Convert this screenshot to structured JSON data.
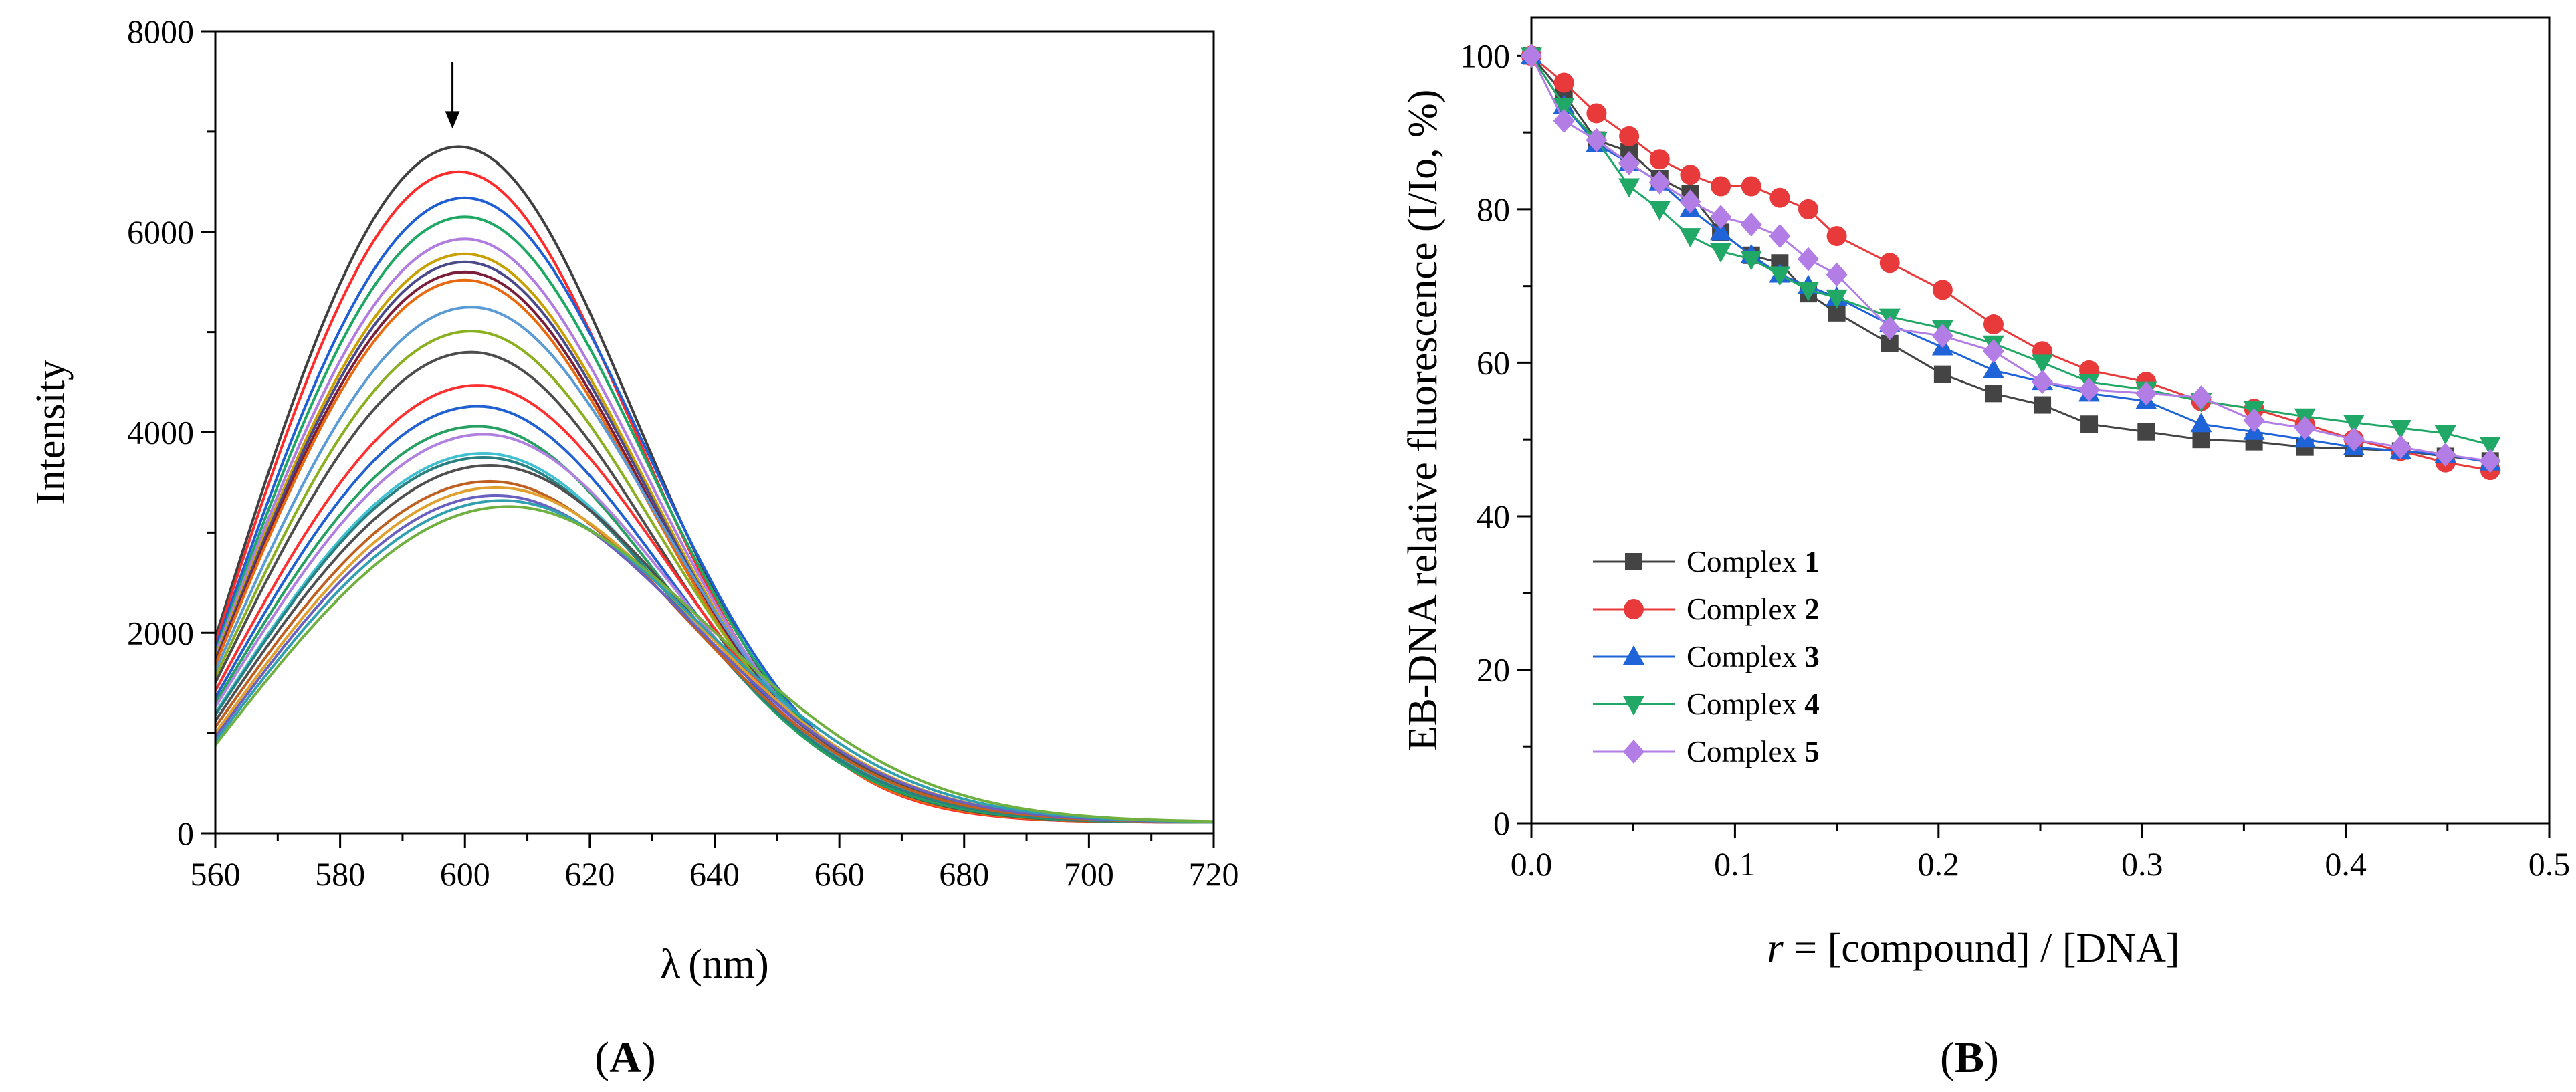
{
  "chart_data": [
    {
      "panel_label": "A",
      "type": "line",
      "xlabel_symbol": "λ",
      "xlabel_unit": "(nm)",
      "ylabel": "Intensity",
      "xlim": [
        560,
        720
      ],
      "ylim": [
        0,
        8000
      ],
      "x_ticks": [
        560,
        580,
        600,
        620,
        640,
        660,
        680,
        700,
        720
      ],
      "y_ticks": [
        0,
        2000,
        4000,
        6000,
        8000
      ],
      "grid": false,
      "annotation": "downward arrow near peak at ~598 nm indicating decreasing intensity",
      "arrow_x": 598,
      "arrow_y_range": [
        7700,
        7030
      ],
      "series_description": "EB-DNA emission spectra titrated with compound; peak max decreases and red-shifts",
      "series": [
        {
          "color": "#404040",
          "peak": 6850,
          "lambda_max": 599,
          "start": 1950
        },
        {
          "color": "#ff2b2b",
          "peak": 6600,
          "lambda_max": 599,
          "start": 1900
        },
        {
          "color": "#1f5fd6",
          "peak": 6340,
          "lambda_max": 600,
          "start": 1850
        },
        {
          "color": "#1ea864",
          "peak": 6150,
          "lambda_max": 600,
          "start": 1800
        },
        {
          "color": "#b07ce0",
          "peak": 5930,
          "lambda_max": 600,
          "start": 1780
        },
        {
          "color": "#c8a000",
          "peak": 5780,
          "lambda_max": 600,
          "start": 1750
        },
        {
          "color": "#4a4a8a",
          "peak": 5700,
          "lambda_max": 600,
          "start": 1720
        },
        {
          "color": "#7a1f3a",
          "peak": 5600,
          "lambda_max": 600,
          "start": 1700
        },
        {
          "color": "#e86a10",
          "peak": 5520,
          "lambda_max": 600,
          "start": 1680
        },
        {
          "color": "#5a9bd5",
          "peak": 5250,
          "lambda_max": 601,
          "start": 1620
        },
        {
          "color": "#8ab020",
          "peak": 5010,
          "lambda_max": 601,
          "start": 1560
        },
        {
          "color": "#4d4d4d",
          "peak": 4800,
          "lambda_max": 601,
          "start": 1500
        },
        {
          "color": "#ff3030",
          "peak": 4470,
          "lambda_max": 602,
          "start": 1420
        },
        {
          "color": "#2060d0",
          "peak": 4260,
          "lambda_max": 602,
          "start": 1350
        },
        {
          "color": "#25a060",
          "peak": 4060,
          "lambda_max": 602,
          "start": 1300
        },
        {
          "color": "#b080e0",
          "peak": 3980,
          "lambda_max": 603,
          "start": 1260
        },
        {
          "color": "#40c0d0",
          "peak": 3790,
          "lambda_max": 603,
          "start": 1200
        },
        {
          "color": "#2a8080",
          "peak": 3750,
          "lambda_max": 603,
          "start": 1180
        },
        {
          "color": "#505050",
          "peak": 3670,
          "lambda_max": 604,
          "start": 1120
        },
        {
          "color": "#c06020",
          "peak": 3510,
          "lambda_max": 604,
          "start": 1060
        },
        {
          "color": "#e0a030",
          "peak": 3450,
          "lambda_max": 605,
          "start": 1000
        },
        {
          "color": "#6a60c0",
          "peak": 3370,
          "lambda_max": 605,
          "start": 960
        },
        {
          "color": "#30a0b0",
          "peak": 3320,
          "lambda_max": 606,
          "start": 920
        },
        {
          "color": "#70b040",
          "peak": 3260,
          "lambda_max": 607,
          "start": 880
        }
      ]
    },
    {
      "panel_label": "B",
      "type": "line",
      "xlabel_var": "r",
      "xlabel_rest": " = [compound] / [DNA]",
      "ylabel": "EB-DNA relative fluorescence (I/Io, %)",
      "xlim": [
        0,
        0.5
      ],
      "ylim": [
        0,
        105
      ],
      "x_ticks": [
        0.0,
        0.1,
        0.2,
        0.3,
        0.4,
        0.5
      ],
      "x_tick_labels": [
        "0.0",
        "0.1",
        "0.2",
        "0.3",
        "0.4",
        "0.5"
      ],
      "y_ticks": [
        0,
        20,
        40,
        60,
        80,
        100
      ],
      "grid": false,
      "legend_position": "bottom-left",
      "series": [
        {
          "name_prefix": "Complex ",
          "name_bold": "1",
          "color": "#444444",
          "marker": "square",
          "x": [
            0,
            0.016,
            0.032,
            0.048,
            0.063,
            0.078,
            0.093,
            0.108,
            0.122,
            0.136,
            0.15,
            0.176,
            0.202,
            0.227,
            0.251,
            0.274,
            0.302,
            0.329,
            0.355,
            0.38,
            0.404,
            0.427,
            0.449,
            0.471
          ],
          "y": [
            100,
            95,
            89,
            87.5,
            84,
            82,
            77,
            74,
            73,
            69,
            66.5,
            62.5,
            58.5,
            56,
            54.5,
            52,
            51,
            50,
            49.7,
            49,
            48.8,
            48.5,
            47.8,
            47.2
          ]
        },
        {
          "name_prefix": "Complex ",
          "name_bold": "2",
          "color": "#e83a3a",
          "marker": "circle",
          "x": [
            0,
            0.016,
            0.032,
            0.048,
            0.063,
            0.078,
            0.093,
            0.108,
            0.122,
            0.136,
            0.15,
            0.176,
            0.202,
            0.227,
            0.251,
            0.274,
            0.302,
            0.329,
            0.355,
            0.38,
            0.404,
            0.427,
            0.449,
            0.471
          ],
          "y": [
            100,
            96.5,
            92.5,
            89.5,
            86.5,
            84.5,
            83,
            83,
            81.5,
            80,
            76.5,
            73,
            69.5,
            65,
            61.5,
            59,
            57.5,
            55,
            54,
            52,
            50,
            48.5,
            47,
            46
          ]
        },
        {
          "name_prefix": "Complex ",
          "name_bold": "3",
          "color": "#1e64d8",
          "marker": "triangle-up",
          "x": [
            0,
            0.016,
            0.032,
            0.048,
            0.063,
            0.078,
            0.093,
            0.108,
            0.122,
            0.136,
            0.15,
            0.176,
            0.202,
            0.227,
            0.251,
            0.274,
            0.302,
            0.329,
            0.355,
            0.38,
            0.404,
            0.427,
            0.449,
            0.471
          ],
          "y": [
            100,
            93.5,
            88.5,
            86,
            83.5,
            80,
            77,
            74,
            71.5,
            70,
            68.5,
            65,
            62,
            59,
            57.5,
            56,
            55,
            52,
            51,
            50,
            49,
            48.5,
            48,
            47
          ]
        },
        {
          "name_prefix": "Complex ",
          "name_bold": "4",
          "color": "#22a866",
          "marker": "triangle-down",
          "x": [
            0,
            0.016,
            0.032,
            0.048,
            0.063,
            0.078,
            0.093,
            0.108,
            0.122,
            0.136,
            0.15,
            0.176,
            0.202,
            0.227,
            0.251,
            0.274,
            0.302,
            0.329,
            0.355,
            0.38,
            0.404,
            0.427,
            0.449,
            0.471
          ],
          "y": [
            100,
            93.5,
            89,
            83,
            80,
            76.5,
            74.5,
            73.5,
            71.5,
            69.5,
            68.5,
            66,
            64.5,
            62.5,
            60,
            57.5,
            56.5,
            55,
            54,
            53,
            52.2,
            51.5,
            50.8,
            49.3
          ]
        },
        {
          "name_prefix": "Complex ",
          "name_bold": "5",
          "color": "#b27ee6",
          "marker": "diamond",
          "x": [
            0,
            0.016,
            0.032,
            0.048,
            0.063,
            0.078,
            0.093,
            0.108,
            0.122,
            0.136,
            0.15,
            0.176,
            0.202,
            0.227,
            0.251,
            0.274,
            0.302,
            0.329,
            0.355,
            0.38,
            0.404,
            0.427,
            0.449,
            0.471
          ],
          "y": [
            100,
            91.5,
            89,
            86,
            83.5,
            81,
            79,
            78,
            76.5,
            73.5,
            71.5,
            64.5,
            63.5,
            61.5,
            57.5,
            56.5,
            56,
            55.5,
            52.5,
            51.5,
            50,
            49,
            48,
            47.2
          ]
        }
      ]
    }
  ]
}
